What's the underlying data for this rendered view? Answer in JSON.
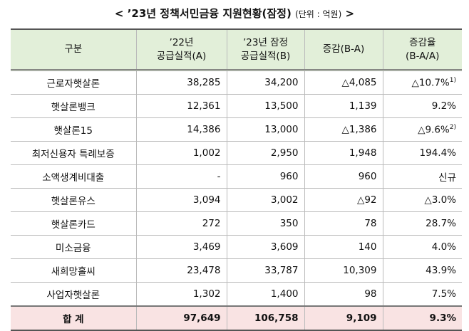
{
  "title": {
    "prefix": "<",
    "main": "’23년 정책서민금융 지원현황(잠정)",
    "unit": "(단위 : 억원)",
    "suffix": ">"
  },
  "table": {
    "header": [
      [
        "구분"
      ],
      [
        "’22년",
        "공급실적(A)"
      ],
      [
        "’23년 잠정",
        "공급실적(B)"
      ],
      [
        "증감(B-A)"
      ],
      [
        "증감율",
        "(B-A/A)"
      ]
    ],
    "rows": [
      {
        "label": "근로자햇살론",
        "cells": [
          "38,285",
          "34,200",
          "△4,085",
          "△10.7%"
        ],
        "note": "1)"
      },
      {
        "label": "햇살론뱅크",
        "cells": [
          "12,361",
          "13,500",
          "1,139",
          "9.2%"
        ]
      },
      {
        "label": "햇살론15",
        "cells": [
          "14,386",
          "13,000",
          "△1,386",
          "△9.6%"
        ],
        "note": "2)"
      },
      {
        "label": "최저신용자 특례보증",
        "cells": [
          "1,002",
          "2,950",
          "1,948",
          "194.4%"
        ]
      },
      {
        "label": "소액생계비대출",
        "cells": [
          "-",
          "960",
          "960",
          "신규"
        ]
      },
      {
        "label": "햇살론유스",
        "cells": [
          "3,094",
          "3,002",
          "△92",
          "△3.0%"
        ]
      },
      {
        "label": "햇살론카드",
        "cells": [
          "272",
          "350",
          "78",
          "28.7%"
        ]
      },
      {
        "label": "미소금융",
        "cells": [
          "3,469",
          "3,609",
          "140",
          "4.0%"
        ]
      },
      {
        "label": "새희망홀씨",
        "cells": [
          "23,478",
          "33,787",
          "10,309",
          "43.9%"
        ]
      },
      {
        "label": "사업자햇살론",
        "cells": [
          "1,302",
          "1,400",
          "98",
          "7.5%"
        ]
      }
    ],
    "total": {
      "label": "합 계",
      "cells": [
        "97,649",
        "106,758",
        "9,109",
        "9.3%"
      ]
    }
  }
}
